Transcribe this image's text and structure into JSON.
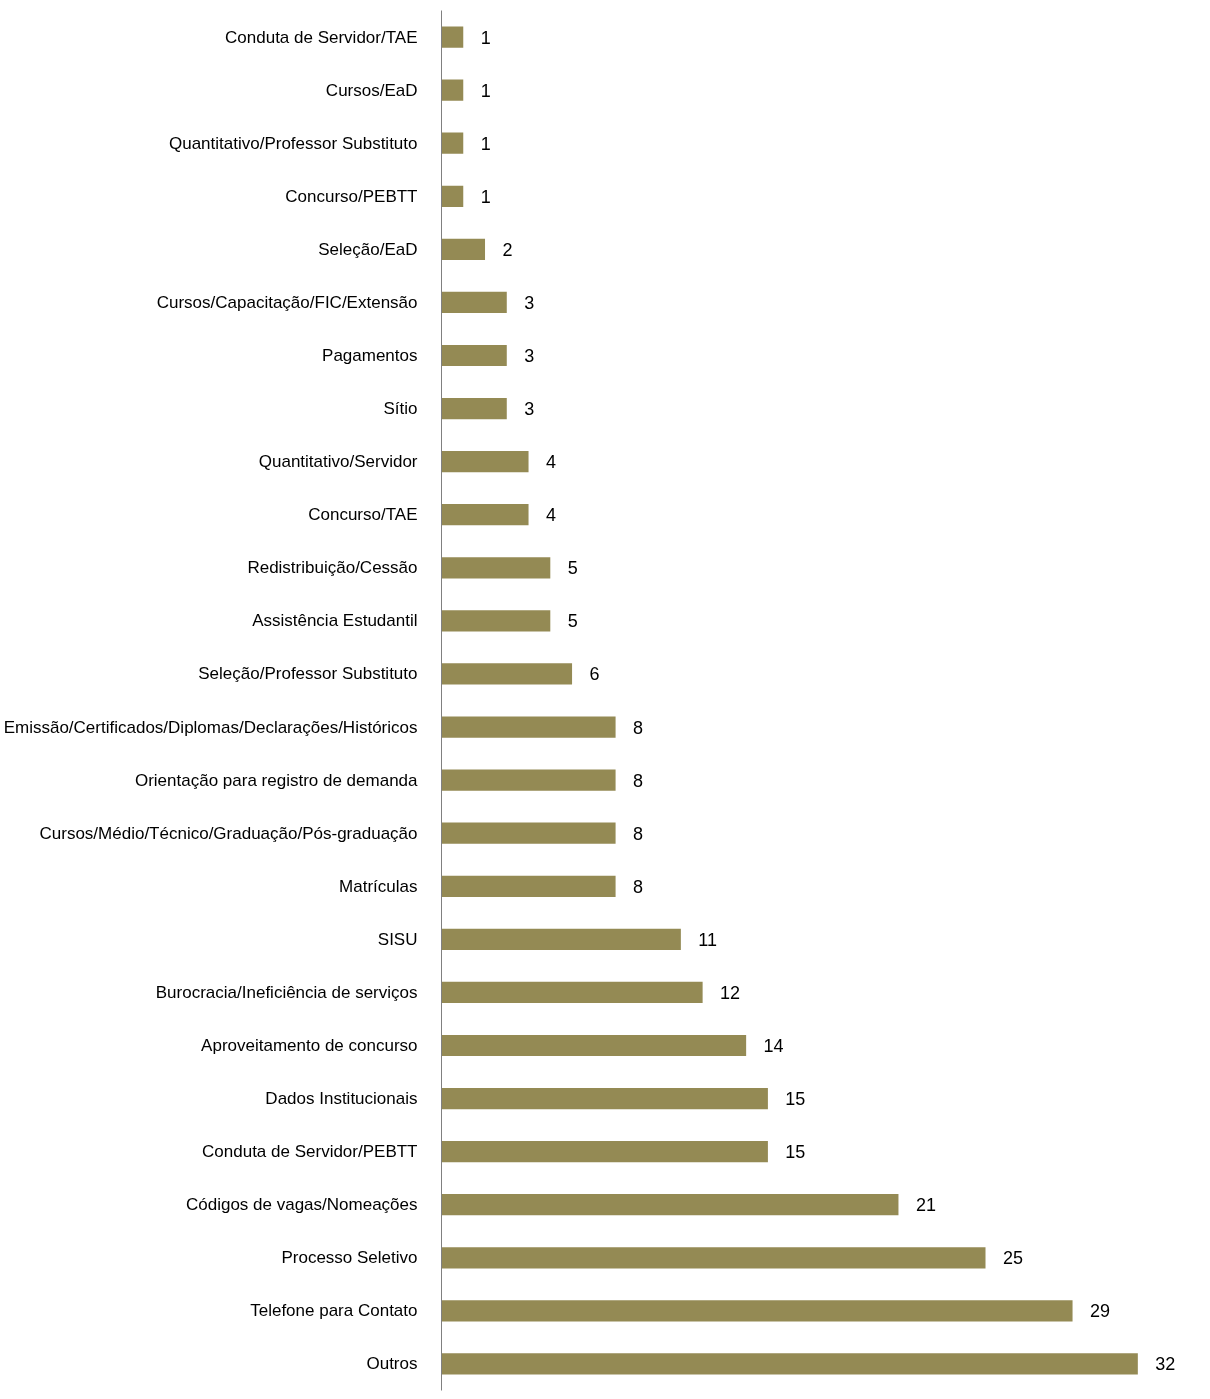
{
  "chart_data": {
    "type": "bar",
    "orientation": "horizontal",
    "data_labels": true,
    "color": "#948a54",
    "categories": [
      "Conduta de Servidor/TAE",
      "Cursos/EaD",
      "Quantitativo/Professor Substituto",
      "Concurso/PEBTT",
      "Seleção/EaD",
      "Cursos/Capacitação/FIC/Extensão",
      "Pagamentos",
      "Sítio",
      "Quantitativo/Servidor",
      "Concurso/TAE",
      "Redistribuição/Cessão",
      "Assistência Estudantil",
      "Seleção/Professor Substituto",
      "Emissão/Certificados/Diplomas/Declarações/Históricos",
      "Orientação para registro de demanda",
      "Cursos/Médio/Técnico/Graduação/Pós-graduação",
      "Matrículas",
      "SISU",
      "Burocracia/Ineficiência de serviços",
      "Aproveitamento de concurso",
      "Dados Institucionais",
      "Conduta de Servidor/PEBTT",
      "Códigos de vagas/Nomeações",
      "Processo Seletivo",
      "Telefone para Contato",
      "Outros"
    ],
    "values": [
      1,
      1,
      1,
      1,
      2,
      3,
      3,
      3,
      4,
      4,
      5,
      5,
      6,
      8,
      8,
      8,
      8,
      11,
      12,
      14,
      15,
      15,
      21,
      25,
      29,
      32
    ]
  }
}
